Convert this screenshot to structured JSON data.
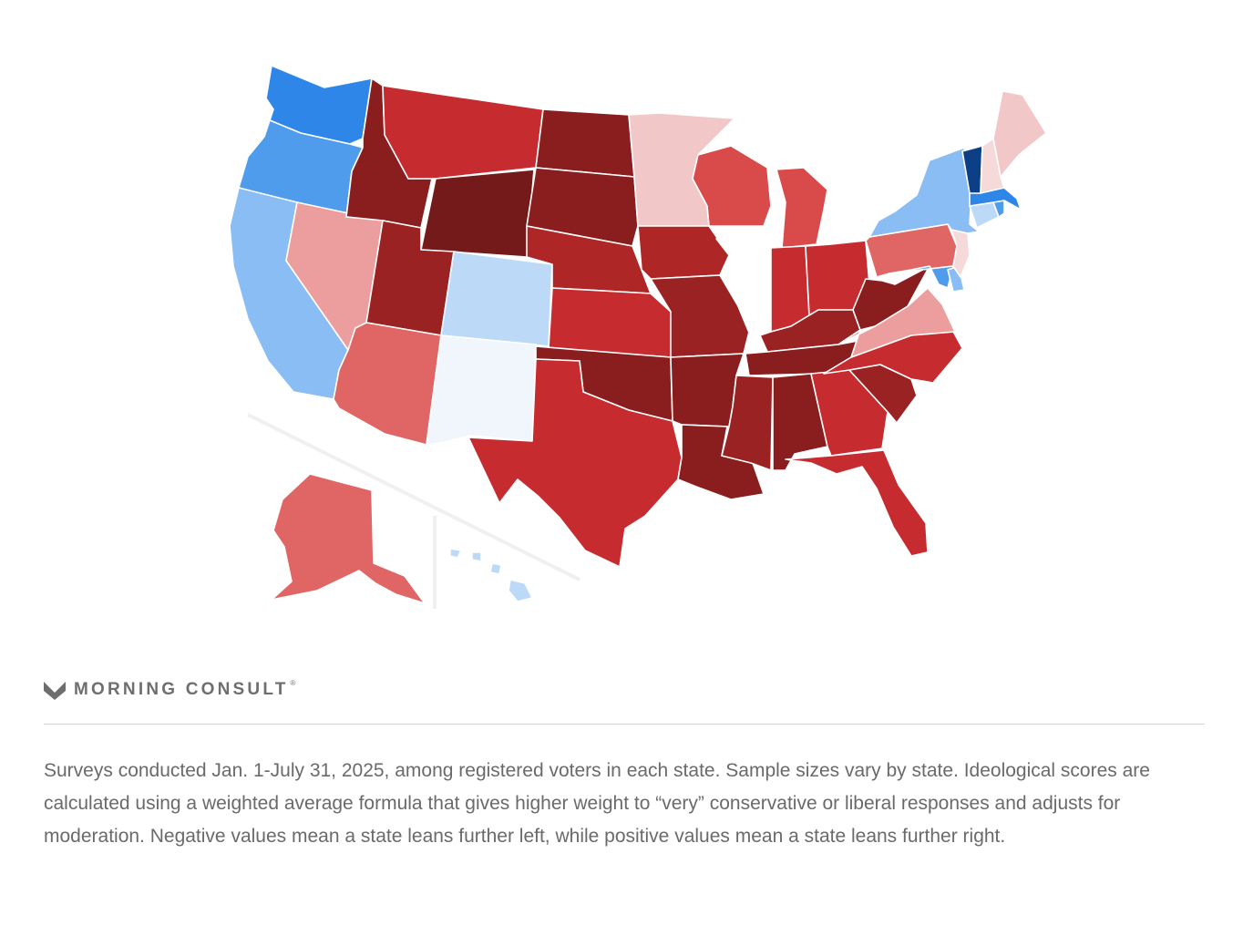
{
  "brand": {
    "name": "MORNING CONSULT",
    "trademark": "®",
    "logo_icon": "m-chevron-logo-icon"
  },
  "footnote": "Surveys conducted Jan. 1-July 31, 2025, among registered voters in each state. Sample sizes vary by state. Ideological scores are calculated using a weighted average formula that gives higher weight to “very” conservative or liberal responses and adjusts for moderation. Negative values mean a state leans further left, while positive values mean a state leans further right.",
  "color_scale": {
    "liberal_dark": "#0d3f86",
    "liberal_strong": "#2e86e8",
    "liberal_mid": "#4f9bec",
    "liberal_light": "#89bdf3",
    "liberal_faint": "#bcd9f8",
    "neutral_left": "#f1f6fd",
    "neutral_white": "#ffffff",
    "conservative_faint": "#f6d9d9",
    "conservative_light": "#f1c7c7",
    "conservative_mild": "#ec9d9d",
    "conservative_mid": "#e06565",
    "conservative_mod": "#d94a4a",
    "conservative_strong": "#c62b2f",
    "conservative_heavy": "#ae2626",
    "conservative_very": "#9a2222",
    "conservative_deep": "#8a1e1e",
    "conservative_darkest": "#741a1a"
  },
  "map_data": {
    "type": "choropleth",
    "states": {
      "WA": "liberal_strong",
      "OR": "liberal_mid",
      "CA": "liberal_light",
      "NV": "conservative_mild",
      "ID": "conservative_deep",
      "MT": "conservative_strong",
      "WY": "conservative_darkest",
      "UT": "conservative_very",
      "AZ": "conservative_mid",
      "CO": "liberal_faint",
      "NM": "neutral_left",
      "ND": "conservative_deep",
      "SD": "conservative_deep",
      "NE": "conservative_heavy",
      "KS": "conservative_strong",
      "OK": "conservative_deep",
      "TX": "conservative_strong",
      "MN": "conservative_light",
      "IA": "conservative_heavy",
      "MO": "conservative_very",
      "AR": "conservative_deep",
      "LA": "conservative_deep",
      "WI": "conservative_mod",
      "IL": "neutral_white",
      "MI": "conservative_mod",
      "IN": "conservative_strong",
      "OH": "conservative_strong",
      "KY": "conservative_very",
      "TN": "conservative_deep",
      "MS": "conservative_very",
      "AL": "conservative_deep",
      "GA": "conservative_strong",
      "FL": "conservative_strong",
      "SC": "conservative_very",
      "NC": "conservative_strong",
      "VA": "conservative_mild",
      "WV": "conservative_deep",
      "PA": "conservative_mid",
      "NY": "liberal_light",
      "VT": "liberal_dark",
      "NH": "conservative_faint",
      "ME": "conservative_light",
      "MA": "liberal_strong",
      "RI": "liberal_mid",
      "CT": "liberal_faint",
      "NJ": "conservative_faint",
      "DE": "liberal_light",
      "MD": "liberal_mid",
      "AK": "conservative_mid",
      "HI": "liberal_faint"
    }
  }
}
